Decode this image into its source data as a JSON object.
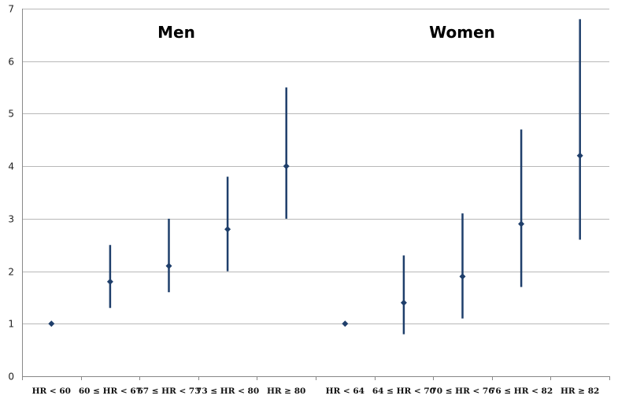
{
  "chart_data": {
    "type": "scatter",
    "subtype": "error-bar",
    "title": "",
    "xlabel": "",
    "ylabel": "",
    "ylim": [
      0,
      7
    ],
    "yticks": [
      0,
      1,
      2,
      3,
      4,
      5,
      6,
      7
    ],
    "grid": "horizontal",
    "legend": "none",
    "colors": {
      "series": "#1f3f6b",
      "grid": "#b8b8b8",
      "axis": "#888888"
    },
    "group_labels": [
      "Men",
      "Women"
    ],
    "categories": [
      "HR < 60",
      "60 ≤ HR < 67",
      "67 ≤ HR < 73",
      "73 ≤ HR < 80",
      "HR ≥ 80",
      "HR < 64",
      "64 ≤ HR < 70",
      "70 ≤ HR < 76",
      "76 ≤ HR < 82",
      "HR ≥ 82"
    ],
    "values": [
      1.0,
      1.8,
      2.1,
      2.8,
      4.0,
      1.0,
      1.4,
      1.9,
      2.9,
      4.2
    ],
    "lower": [
      null,
      1.3,
      1.6,
      2.0,
      3.0,
      null,
      0.8,
      1.1,
      1.7,
      2.6
    ],
    "upper": [
      null,
      2.5,
      3.0,
      3.8,
      5.5,
      null,
      2.3,
      3.1,
      4.7,
      6.8
    ]
  }
}
